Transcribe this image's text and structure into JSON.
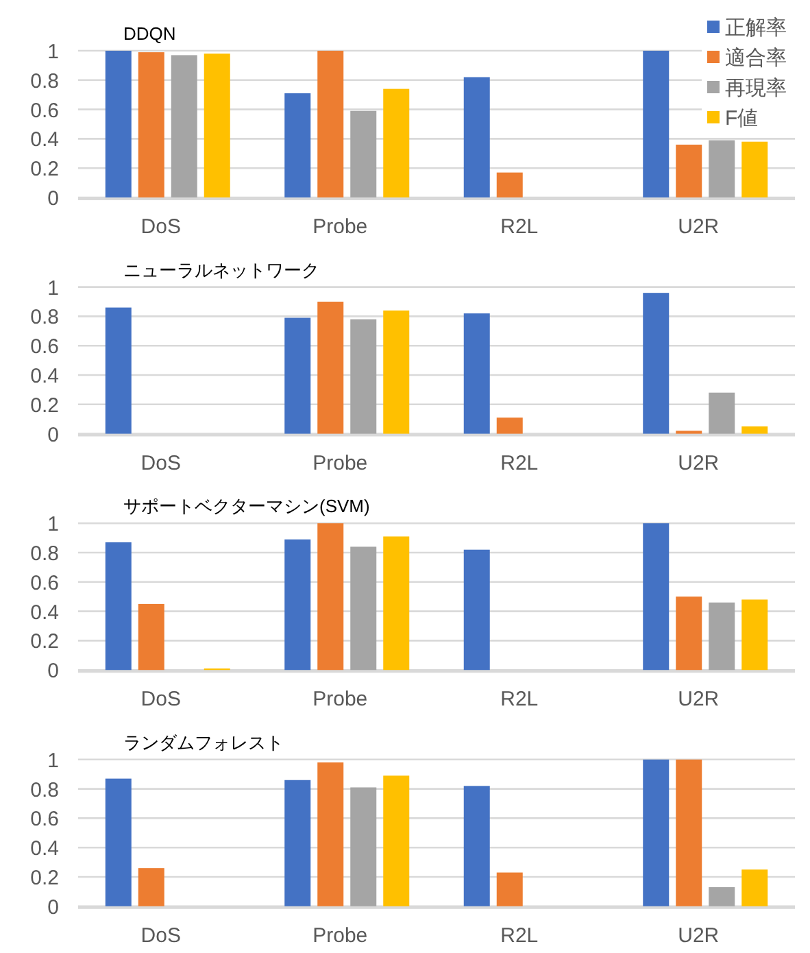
{
  "chart_data": [
    {
      "type": "bar",
      "title": "DDQN",
      "categories": [
        "DoS",
        "Probe",
        "R2L",
        "U2R"
      ],
      "ylim": [
        0,
        1
      ],
      "yticks": [
        0,
        0.2,
        0.4,
        0.6,
        0.8,
        1
      ],
      "grid": "y",
      "legend": "top right",
      "series": [
        {
          "name": "正解率",
          "color": "#4472c4",
          "values": [
            1.0,
            0.71,
            0.82,
            1.0
          ]
        },
        {
          "name": "適合率",
          "color": "#ed7d31",
          "values": [
            0.99,
            1.0,
            0.17,
            0.36
          ]
        },
        {
          "name": "再現率",
          "color": "#a5a5a5",
          "values": [
            0.97,
            0.59,
            0,
            0.39
          ]
        },
        {
          "name": "F値",
          "color": "#ffc000",
          "values": [
            0.98,
            0.74,
            0,
            0.38
          ]
        }
      ]
    },
    {
      "type": "bar",
      "title": "ニューラルネットワーク",
      "categories": [
        "DoS",
        "Probe",
        "R2L",
        "U2R"
      ],
      "ylim": [
        0,
        1
      ],
      "yticks": [
        0,
        0.2,
        0.4,
        0.6,
        0.8,
        1
      ],
      "grid": "y",
      "series": [
        {
          "color": "#4472c4",
          "values": [
            0.86,
            0.79,
            0.82,
            0.96
          ]
        },
        {
          "color": "#ed7d31",
          "values": [
            0,
            0.9,
            0.11,
            0.02
          ]
        },
        {
          "color": "#a5a5a5",
          "values": [
            0,
            0.78,
            0,
            0.28
          ]
        },
        {
          "color": "#ffc000",
          "values": [
            0,
            0.84,
            0,
            0.05
          ]
        }
      ]
    },
    {
      "type": "bar",
      "title": "サポートベクターマシン(SVM)",
      "categories": [
        "DoS",
        "Probe",
        "R2L",
        "U2R"
      ],
      "ylim": [
        0,
        1
      ],
      "yticks": [
        0,
        0.2,
        0.4,
        0.6,
        0.8,
        1
      ],
      "grid": "y",
      "series": [
        {
          "color": "#4472c4",
          "values": [
            0.87,
            0.89,
            0.82,
            1.0
          ]
        },
        {
          "color": "#ed7d31",
          "values": [
            0.45,
            1.0,
            0,
            0.5
          ]
        },
        {
          "color": "#a5a5a5",
          "values": [
            0,
            0.84,
            0,
            0.46
          ]
        },
        {
          "color": "#ffc000",
          "values": [
            0.01,
            0.91,
            0,
            0.48
          ]
        }
      ]
    },
    {
      "type": "bar",
      "title": "ランダムフォレスト",
      "categories": [
        "DoS",
        "Probe",
        "R2L",
        "U2R"
      ],
      "ylim": [
        0,
        1
      ],
      "yticks": [
        0,
        0.2,
        0.4,
        0.6,
        0.8,
        1
      ],
      "grid": "y",
      "series": [
        {
          "color": "#4472c4",
          "values": [
            0.87,
            0.86,
            0.82,
            1.0
          ]
        },
        {
          "color": "#ed7d31",
          "values": [
            0.26,
            0.98,
            0.23,
            1.0
          ]
        },
        {
          "color": "#a5a5a5",
          "values": [
            0,
            0.81,
            0,
            0.13
          ]
        },
        {
          "color": "#ffc000",
          "values": [
            0,
            0.89,
            0,
            0.25
          ]
        }
      ]
    }
  ]
}
